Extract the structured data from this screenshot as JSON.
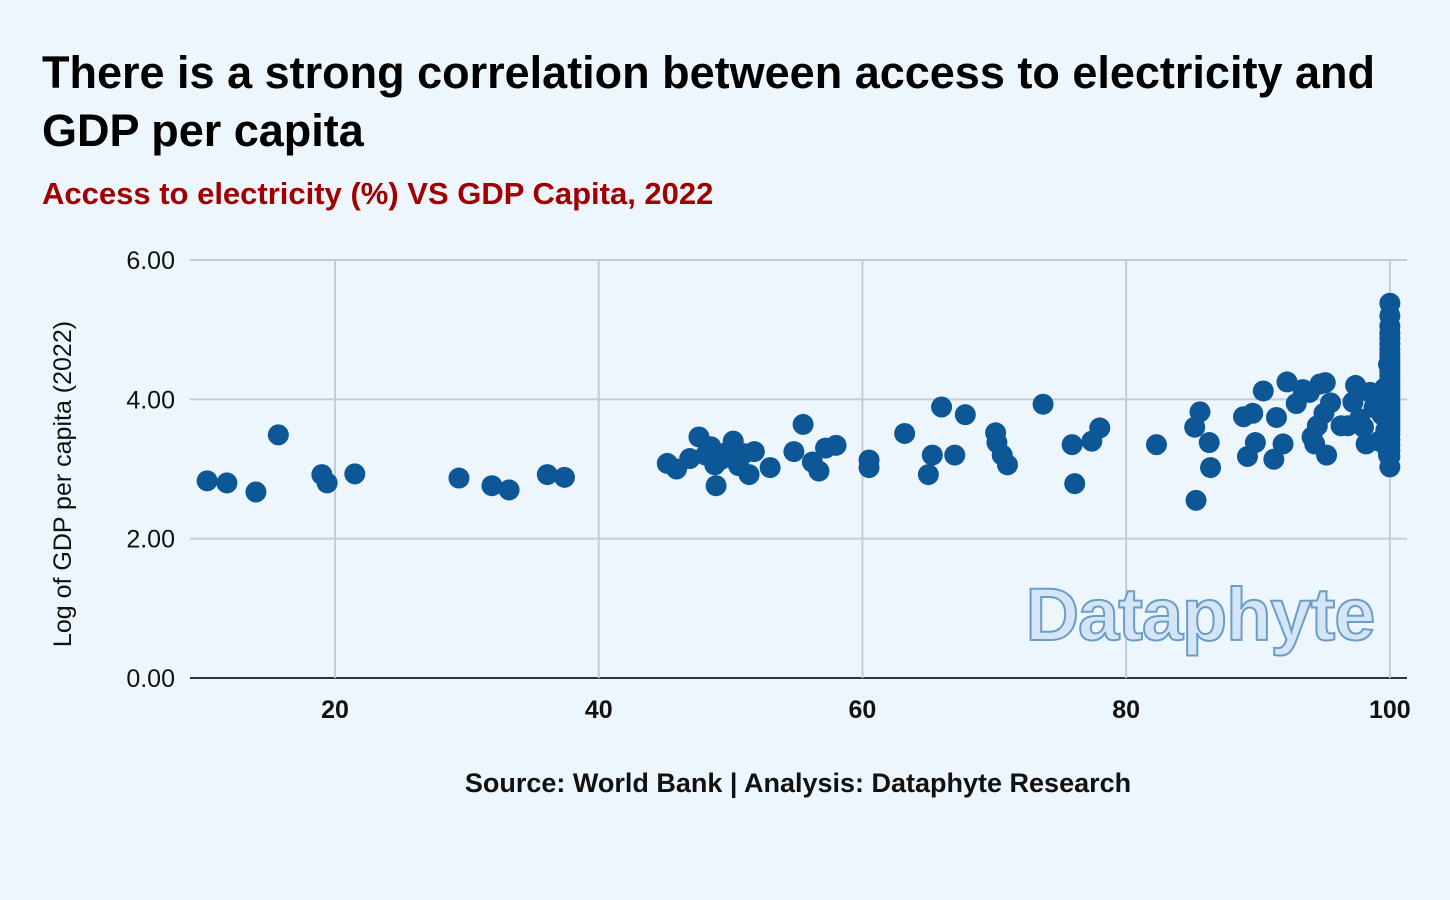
{
  "title": "There is a strong correlation between access to electricity and GDP per capita",
  "subtitle": "Access to electricity (%) VS GDP Capita, 2022",
  "source": "Source: World Bank | Analysis: Dataphyte Research",
  "watermark": "Dataphyte",
  "colors": {
    "background": "#eef6fd",
    "points": "#0d5797",
    "grid": "#c5ccd4",
    "subtitle": "#a00000"
  },
  "chart_data": {
    "type": "scatter",
    "title": "There is a strong correlation between access to electricity and GDP per capita",
    "subtitle": "Access to electricity (%) VS GDP Capita, 2022",
    "xlabel": "",
    "ylabel": "Log of GDP per capita (2022)",
    "xlim": [
      9,
      101.3
    ],
    "ylim": [
      0,
      6
    ],
    "xticks": [
      "20",
      "40",
      "60",
      "80",
      "100"
    ],
    "xtick_values": [
      20,
      40,
      60,
      80,
      100
    ],
    "yticks": [
      "0.00",
      "2.00",
      "4.00",
      "6.00"
    ],
    "ytick_values": [
      0,
      2,
      4,
      6
    ],
    "grid": true,
    "points": [
      [
        10.3,
        2.83
      ],
      [
        11.8,
        2.8
      ],
      [
        14.0,
        2.67
      ],
      [
        15.7,
        3.49
      ],
      [
        19.0,
        2.92
      ],
      [
        19.4,
        2.8
      ],
      [
        21.5,
        2.93
      ],
      [
        29.4,
        2.87
      ],
      [
        31.9,
        2.76
      ],
      [
        33.2,
        2.7
      ],
      [
        36.1,
        2.92
      ],
      [
        37.4,
        2.88
      ],
      [
        45.2,
        3.08
      ],
      [
        45.9,
        3.0
      ],
      [
        46.9,
        3.15
      ],
      [
        47.6,
        3.46
      ],
      [
        48.1,
        3.2
      ],
      [
        48.5,
        3.32
      ],
      [
        48.8,
        3.06
      ],
      [
        48.9,
        2.76
      ],
      [
        49.3,
        3.14
      ],
      [
        49.8,
        3.25
      ],
      [
        50.2,
        3.4
      ],
      [
        50.6,
        3.05
      ],
      [
        51.0,
        3.22
      ],
      [
        51.4,
        2.92
      ],
      [
        51.8,
        3.25
      ],
      [
        53.0,
        3.02
      ],
      [
        54.8,
        3.25
      ],
      [
        55.5,
        3.64
      ],
      [
        56.2,
        3.1
      ],
      [
        56.7,
        2.97
      ],
      [
        57.2,
        3.3
      ],
      [
        58.0,
        3.34
      ],
      [
        60.5,
        3.13
      ],
      [
        60.5,
        3.02
      ],
      [
        63.2,
        3.51
      ],
      [
        65.0,
        2.92
      ],
      [
        65.3,
        3.2
      ],
      [
        66.0,
        3.89
      ],
      [
        67.0,
        3.2
      ],
      [
        67.8,
        3.78
      ],
      [
        70.1,
        3.52
      ],
      [
        70.2,
        3.38
      ],
      [
        70.6,
        3.2
      ],
      [
        71.0,
        3.06
      ],
      [
        73.7,
        3.93
      ],
      [
        75.9,
        3.35
      ],
      [
        76.1,
        2.79
      ],
      [
        77.4,
        3.4
      ],
      [
        78.0,
        3.59
      ],
      [
        82.3,
        3.35
      ],
      [
        85.2,
        3.6
      ],
      [
        85.3,
        2.55
      ],
      [
        85.6,
        3.82
      ],
      [
        86.3,
        3.38
      ],
      [
        86.4,
        3.02
      ],
      [
        88.9,
        3.75
      ],
      [
        89.2,
        3.18
      ],
      [
        89.6,
        3.8
      ],
      [
        89.8,
        3.38
      ],
      [
        90.4,
        4.12
      ],
      [
        91.2,
        3.14
      ],
      [
        91.4,
        3.74
      ],
      [
        91.9,
        3.36
      ],
      [
        92.2,
        4.25
      ],
      [
        92.9,
        3.94
      ],
      [
        93.4,
        4.14
      ],
      [
        93.9,
        4.1
      ],
      [
        94.1,
        3.46
      ],
      [
        94.3,
        3.36
      ],
      [
        94.5,
        3.62
      ],
      [
        94.7,
        4.22
      ],
      [
        95.0,
        3.8
      ],
      [
        95.1,
        4.24
      ],
      [
        95.2,
        3.2
      ],
      [
        95.5,
        3.95
      ],
      [
        96.3,
        3.62
      ],
      [
        96.8,
        3.62
      ],
      [
        97.2,
        3.96
      ],
      [
        97.4,
        4.2
      ],
      [
        97.7,
        3.72
      ],
      [
        98.0,
        3.6
      ],
      [
        98.2,
        3.36
      ],
      [
        98.5,
        4.1
      ],
      [
        98.8,
        3.88
      ],
      [
        99.0,
        4.02
      ],
      [
        99.2,
        3.4
      ],
      [
        99.4,
        3.78
      ],
      [
        99.6,
        4.16
      ],
      [
        99.7,
        3.56
      ],
      [
        99.8,
        3.3
      ],
      [
        99.9,
        4.5
      ],
      [
        99.9,
        3.2
      ],
      [
        100,
        5.38
      ],
      [
        100,
        5.2
      ],
      [
        100,
        5.05
      ],
      [
        100,
        4.95
      ],
      [
        100,
        4.88
      ],
      [
        100,
        4.8
      ],
      [
        100,
        4.72
      ],
      [
        100,
        4.65
      ],
      [
        100,
        4.58
      ],
      [
        100,
        4.52
      ],
      [
        100,
        4.46
      ],
      [
        100,
        4.4
      ],
      [
        100,
        4.34
      ],
      [
        100,
        4.28
      ],
      [
        100,
        4.22
      ],
      [
        100,
        4.16
      ],
      [
        100,
        4.1
      ],
      [
        100,
        4.04
      ],
      [
        100,
        3.98
      ],
      [
        100,
        3.92
      ],
      [
        100,
        3.86
      ],
      [
        100,
        3.8
      ],
      [
        100,
        3.74
      ],
      [
        100,
        3.68
      ],
      [
        100,
        3.62
      ],
      [
        100,
        3.56
      ],
      [
        100,
        3.5
      ],
      [
        100,
        3.42
      ],
      [
        100,
        3.35
      ],
      [
        100,
        3.27
      ],
      [
        100,
        3.18
      ],
      [
        100,
        3.03
      ]
    ]
  }
}
